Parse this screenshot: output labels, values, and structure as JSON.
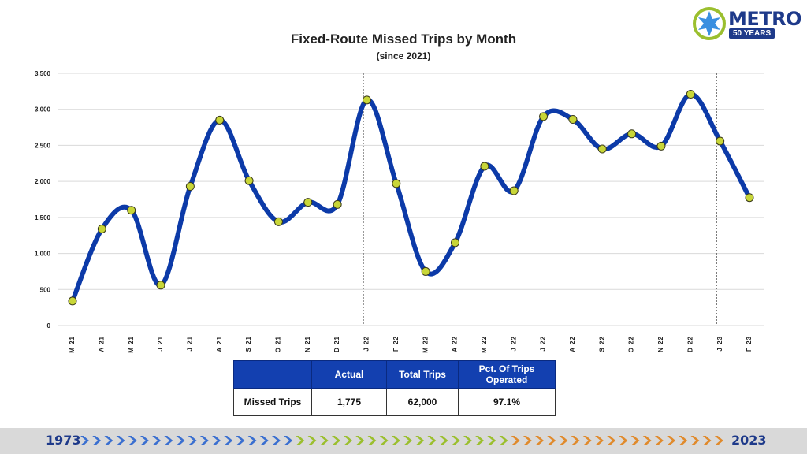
{
  "logo": {
    "name": "METRO",
    "tag": "50 YEARS"
  },
  "chart_data": {
    "type": "line",
    "title": "Fixed-Route Missed Trips by Month",
    "subtitle": "(since 2021)",
    "xlabel": "",
    "ylabel": "",
    "ylim": [
      0,
      3500
    ],
    "yticks": [
      "0",
      "500",
      "1,000",
      "1,500",
      "2,000",
      "2,500",
      "3,000",
      "3,500"
    ],
    "ytick_values": [
      0,
      500,
      1000,
      1500,
      2000,
      2500,
      3000,
      3500
    ],
    "grid": true,
    "categories": [
      "M 21",
      "A 21",
      "M 21",
      "J 21",
      "J 21",
      "A 21",
      "S 21",
      "O 21",
      "N 21",
      "D 21",
      "J 22",
      "F 22",
      "M 22",
      "A 22",
      "M 22",
      "J 22",
      "J 22",
      "A 22",
      "S 22",
      "O 22",
      "N 22",
      "D 22",
      "J 23",
      "F 23"
    ],
    "series": [
      {
        "name": "",
        "color": "#0c3aa8",
        "marker_color": "#c8d638",
        "values": [
          340,
          1340,
          1600,
          560,
          1930,
          2850,
          2010,
          1440,
          1710,
          1680,
          3130,
          1970,
          750,
          1150,
          2210,
          1870,
          2900,
          2860,
          2450,
          2660,
          2490,
          3210,
          2560,
          1775
        ]
      }
    ],
    "year_dividers_after": [
      "D 21",
      "D 22"
    ]
  },
  "table": {
    "headers": [
      "",
      "Actual",
      "Total Trips",
      "Pct. Of Trips Operated"
    ],
    "rows": [
      [
        "Missed Trips",
        "1,775",
        "62,000",
        "97.1%"
      ]
    ]
  },
  "footer": {
    "start_year": "1973",
    "end_year": "2023",
    "arrow_colors": [
      "#3a6fd0",
      "#9bbf2e",
      "#e08a2c"
    ]
  }
}
